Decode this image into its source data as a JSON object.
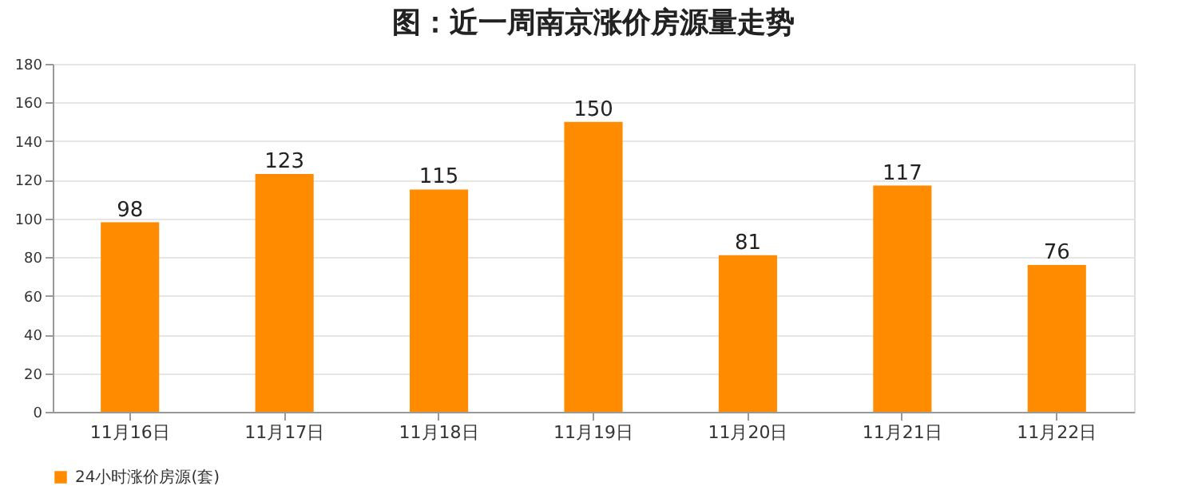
{
  "chart_data": {
    "type": "bar",
    "title": "图：近一周南京涨价房源量走势",
    "categories": [
      "11月16日",
      "11月17日",
      "11月18日",
      "11月19日",
      "11月20日",
      "11月21日",
      "11月22日"
    ],
    "series": [
      {
        "name": "24小时涨价房源(套)",
        "color": "#ff8c00",
        "values": [
          98,
          123,
          115,
          150,
          81,
          117,
          76
        ]
      }
    ],
    "ylim": [
      0,
      180
    ],
    "yticks": [
      0,
      20,
      40,
      60,
      80,
      100,
      120,
      140,
      160,
      180
    ],
    "grid": "y",
    "legend": "bottom",
    "data_labels": true
  }
}
